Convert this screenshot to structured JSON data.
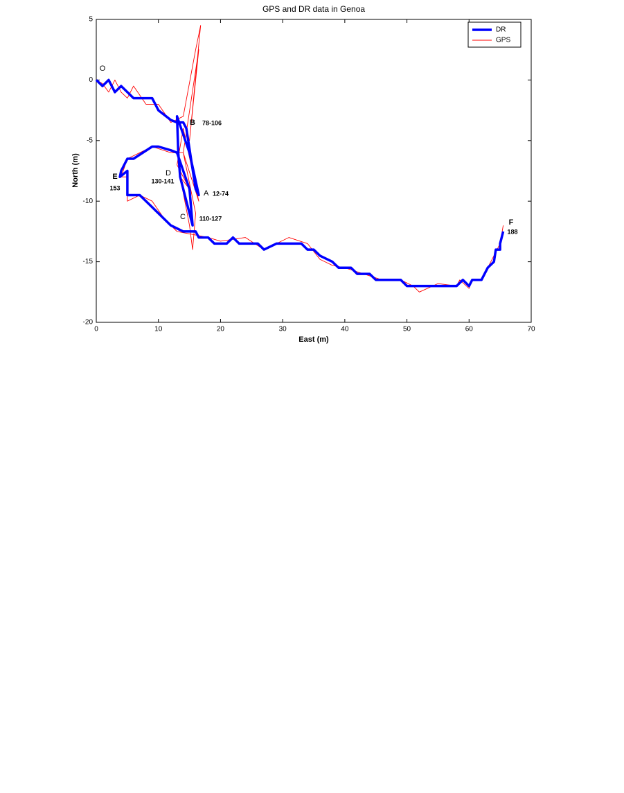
{
  "chart_data": {
    "type": "line",
    "title": "GPS and DR data in Genoa",
    "xlabel": "East (m)",
    "ylabel": "North (m)",
    "xlim": [
      0,
      70
    ],
    "ylim": [
      -20,
      5
    ],
    "xticks": [
      0,
      10,
      20,
      30,
      40,
      50,
      60,
      70
    ],
    "yticks": [
      5,
      0,
      -5,
      -10,
      -15,
      -20
    ],
    "grid": false,
    "legend": "upper right",
    "annotations": [
      "O",
      "B",
      "78-106",
      "E",
      "153",
      "D",
      "130-141",
      "A",
      "12-74",
      "C",
      "110-127",
      "F",
      "188"
    ],
    "series": [
      {
        "name": "DR",
        "color": "#0000ff",
        "x": [
          0,
          1,
          2,
          3,
          4,
          5,
          6,
          9,
          10,
          12,
          13,
          14,
          14.5,
          16,
          16.5,
          15,
          14,
          13,
          13.2,
          13.5,
          15.5,
          15,
          13,
          12,
          10,
          9,
          6,
          5,
          4,
          3.8,
          5,
          5,
          7,
          9,
          12,
          14,
          16,
          16.5,
          18,
          19,
          21,
          22,
          23,
          26,
          27,
          29,
          33,
          34,
          35,
          36,
          38,
          39,
          41,
          42,
          44,
          45,
          49,
          50,
          58,
          59,
          60,
          60.5,
          62,
          63,
          64,
          64.3,
          65,
          65,
          65.5
        ],
        "values": [
          0,
          -0.5,
          0,
          -1,
          -0.5,
          -1,
          -1.5,
          -1.5,
          -2.5,
          -3.3,
          -3.5,
          -3.5,
          -4,
          -9,
          -9.5,
          -6,
          -4.5,
          -3,
          -6,
          -8,
          -12,
          -9,
          -6,
          -5.8,
          -5.5,
          -5.5,
          -6.5,
          -6.5,
          -7.5,
          -8,
          -7.5,
          -9.5,
          -9.5,
          -10.5,
          -12,
          -12.5,
          -12.5,
          -13,
          -13,
          -13.5,
          -13.5,
          -13,
          -13.5,
          -13.5,
          -14,
          -13.5,
          -13.5,
          -14,
          -14,
          -14.5,
          -15,
          -15.5,
          -15.5,
          -16,
          -16,
          -16.5,
          -16.5,
          -17,
          -17,
          -16.5,
          -17,
          -16.5,
          -16.5,
          -15.5,
          -15,
          -14,
          -14,
          -13.5,
          -12.5
        ]
      },
      {
        "name": "GPS",
        "color": "#ff0000",
        "x": [
          0,
          1,
          2,
          3,
          4,
          5,
          6,
          8,
          10,
          12,
          14,
          16,
          16.8,
          15,
          16.5,
          14,
          16.5,
          14,
          13,
          15,
          13.5,
          15,
          15.5,
          16,
          14,
          12,
          9,
          7,
          5,
          4,
          5,
          5,
          7,
          9,
          11,
          13,
          16,
          18,
          20,
          24,
          27,
          31,
          34,
          36,
          38,
          40,
          43,
          46,
          49,
          51,
          52,
          55,
          58,
          58.5,
          60,
          60.5,
          62,
          63,
          64,
          65,
          65.5
        ],
        "values": [
          0,
          -0.3,
          -1,
          0,
          -1,
          -1.5,
          -0.5,
          -2,
          -2,
          -3.5,
          -3,
          2.5,
          4.5,
          -5,
          2.5,
          -6,
          -10,
          -4,
          -7,
          -9,
          -8,
          -12,
          -14,
          -11,
          -6,
          -6,
          -5.5,
          -6,
          -6.5,
          -8,
          -8,
          -10,
          -9.5,
          -10,
          -11.5,
          -12.5,
          -12.8,
          -13,
          -13.3,
          -13,
          -14,
          -13,
          -13.5,
          -14.8,
          -15.3,
          -15.5,
          -16,
          -16.5,
          -16.5,
          -17,
          -17.5,
          -16.8,
          -17,
          -16.5,
          -17.2,
          -16.5,
          -16.5,
          -15.5,
          -14.5,
          -13.5,
          -12
        ]
      }
    ]
  }
}
